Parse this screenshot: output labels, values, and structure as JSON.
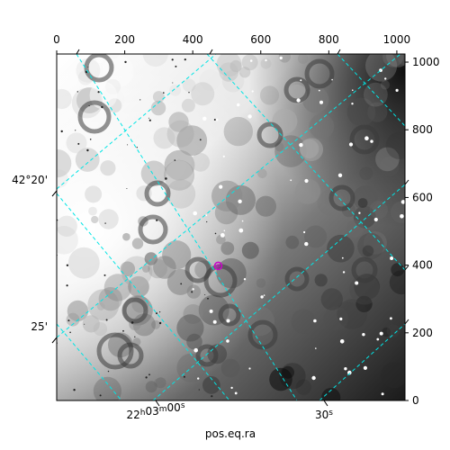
{
  "chart_data": {
    "type": "image",
    "colormap": "gray",
    "pixel_axes": {
      "x_range": [
        0,
        1024
      ],
      "y_range": [
        0,
        1024
      ],
      "x_ticks": [
        0,
        200,
        400,
        600,
        800,
        1000
      ],
      "y_ticks": [
        0,
        200,
        400,
        600,
        800,
        1000
      ],
      "x_tick_labels": [
        "0",
        "200",
        "400",
        "600",
        "800",
        "1000"
      ],
      "y_tick_labels": [
        "0",
        "200",
        "400",
        "600",
        "800",
        "1000"
      ]
    },
    "world_axes": {
      "ra_label": "pos.eq.ra",
      "ra_ticks": [
        {
          "text_main": "22",
          "sup1": "h",
          "mid": "03",
          "sup2": "m",
          "end": "00",
          "sup3": "s"
        },
        {
          "text_main": "30",
          "sup1": "s",
          "mid": "",
          "sup2": "",
          "end": "",
          "sup3": ""
        }
      ],
      "dec_ticks": [
        "42°20'",
        "25'"
      ]
    },
    "grid": true,
    "grid_color": "#00e5e5",
    "marker": {
      "shape": "circle",
      "color": "#cc00cc",
      "x": 475,
      "y": 398
    }
  }
}
